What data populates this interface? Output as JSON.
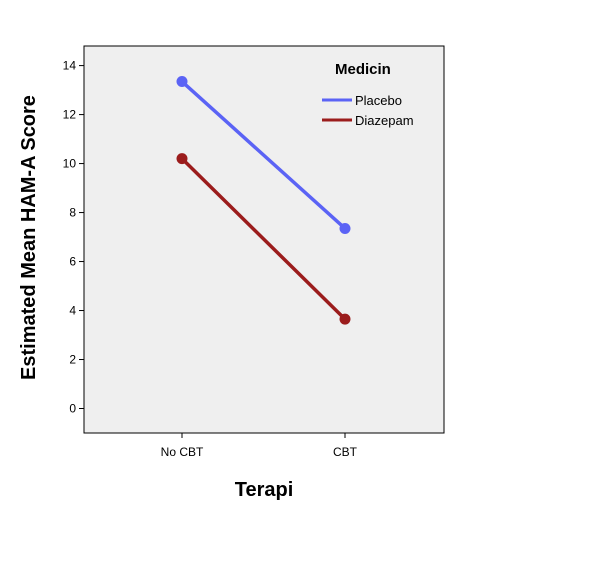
{
  "chart_data": {
    "type": "line",
    "title": "",
    "xlabel": "Terapi",
    "ylabel": "Estimated Mean HAM-A Score",
    "categories": [
      "No CBT",
      "CBT"
    ],
    "ylim": [
      -1,
      14.8
    ],
    "yticks": [
      0,
      2,
      4,
      6,
      8,
      10,
      12,
      14
    ],
    "grid": false,
    "legend": {
      "title": "Medicin",
      "placement": "top-right"
    },
    "series": [
      {
        "name": "Placebo",
        "values": [
          13.35,
          7.35
        ],
        "color": "#5b63f5"
      },
      {
        "name": "Diazepam",
        "values": [
          10.2,
          3.65
        ],
        "color": "#9b1c1c"
      }
    ],
    "plot_background": "#efefef"
  }
}
